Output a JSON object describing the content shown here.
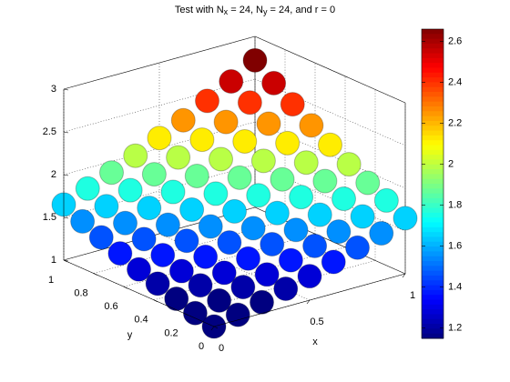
{
  "chart_data": {
    "type": "scatter3",
    "title": [
      {
        "text": "Test with N"
      },
      {
        "text": "x",
        "sub": true
      },
      {
        "text": " = 24, N"
      },
      {
        "text": "y",
        "sub": true
      },
      {
        "text": " = 24, and r = 0"
      }
    ],
    "xlabel": "x",
    "ylabel": "y",
    "x": [
      0,
      0.125,
      0.25,
      0.375,
      0.5,
      0.625,
      0.75,
      0.875,
      1
    ],
    "y": [
      0,
      0.125,
      0.25,
      0.375,
      0.5,
      0.625,
      0.75,
      0.875,
      1
    ],
    "z": [
      [
        1.0,
        1.06,
        1.13,
        1.21,
        1.28,
        1.37,
        1.46,
        1.55,
        1.65
      ],
      [
        1.06,
        1.13,
        1.21,
        1.28,
        1.37,
        1.46,
        1.55,
        1.65,
        1.76
      ],
      [
        1.13,
        1.21,
        1.28,
        1.37,
        1.46,
        1.55,
        1.65,
        1.76,
        1.87
      ],
      [
        1.21,
        1.28,
        1.37,
        1.46,
        1.55,
        1.65,
        1.76,
        1.87,
        1.99
      ],
      [
        1.28,
        1.37,
        1.46,
        1.55,
        1.65,
        1.76,
        1.87,
        1.99,
        2.12
      ],
      [
        1.37,
        1.46,
        1.55,
        1.65,
        1.76,
        1.87,
        1.99,
        2.12,
        2.25
      ],
      [
        1.46,
        1.55,
        1.65,
        1.76,
        1.87,
        1.99,
        2.12,
        2.25,
        2.4
      ],
      [
        1.55,
        1.65,
        1.76,
        1.87,
        1.99,
        2.12,
        2.25,
        2.4,
        2.55
      ],
      [
        1.65,
        1.76,
        1.87,
        1.99,
        2.12,
        2.25,
        2.4,
        2.55,
        2.72
      ]
    ],
    "xlim": [
      0,
      1
    ],
    "xticks": [
      0,
      0.5,
      1
    ],
    "ylim": [
      0,
      1
    ],
    "yticks": [
      0,
      0.2,
      0.4,
      0.6,
      0.8,
      1
    ],
    "zlim": [
      1,
      3
    ],
    "zticks": [
      1,
      1.5,
      2,
      2.5,
      3
    ],
    "clim": [
      1.15,
      2.66
    ],
    "colorbar_ticks": [
      1.2,
      1.4,
      1.6,
      1.8,
      2,
      2.2,
      2.4,
      2.6
    ],
    "colormap": "jet",
    "grid": true
  }
}
